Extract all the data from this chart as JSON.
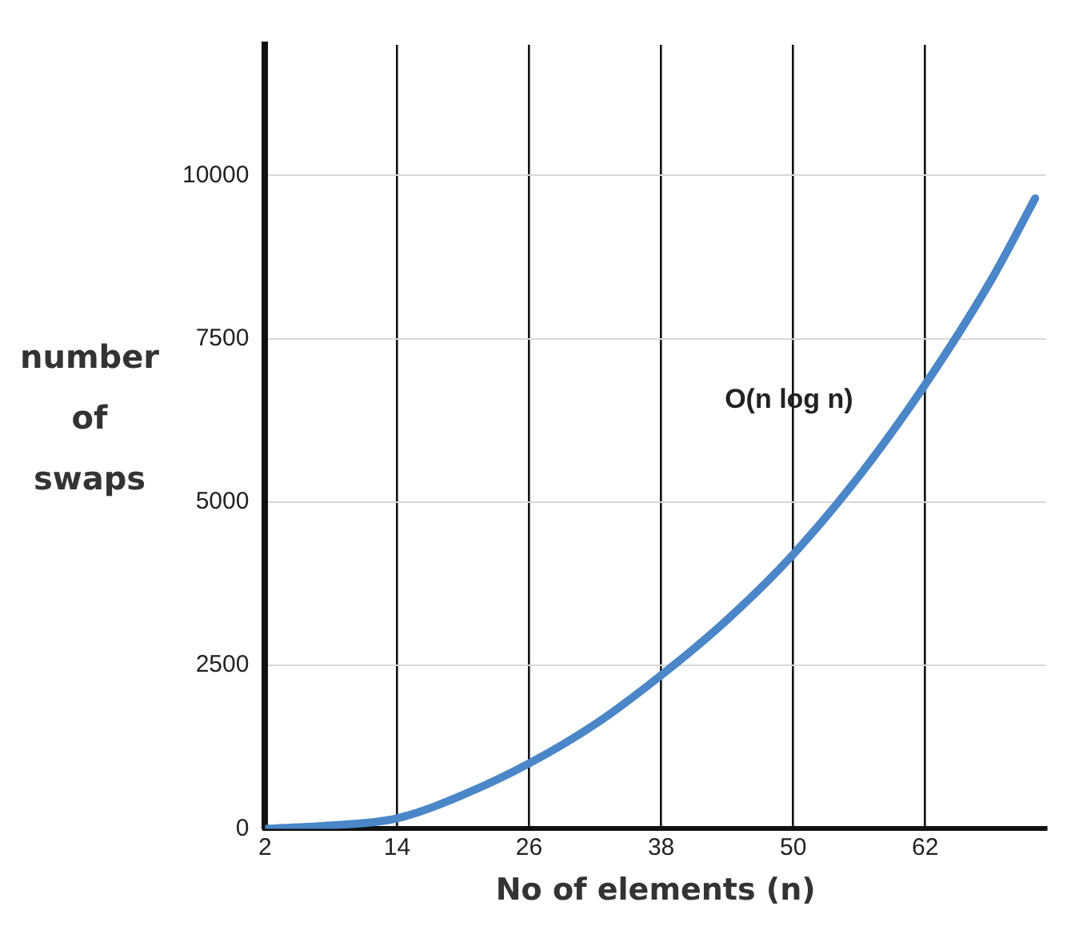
{
  "chart_data": {
    "type": "line",
    "xlabel": "No of elements (n)",
    "ylabel": "number of swaps",
    "series": [
      {
        "name": "O(n log n)",
        "color": "#4a86c8",
        "x": [
          2,
          8,
          14,
          20,
          26,
          32,
          38,
          44,
          50,
          56,
          62,
          68,
          72
        ],
        "values": [
          0,
          50,
          160,
          520,
          1000,
          1600,
          2350,
          3200,
          4200,
          5400,
          6800,
          8400,
          9650
        ]
      }
    ],
    "xlim": [
      2,
      73
    ],
    "xticks": [
      2,
      14,
      26,
      38,
      50,
      62
    ],
    "ylim": [
      0,
      12000
    ],
    "yticks": [
      0,
      2500,
      5000,
      7500,
      10000
    ],
    "grid": true,
    "legend": false,
    "marker": "none",
    "line_style": "solid"
  }
}
